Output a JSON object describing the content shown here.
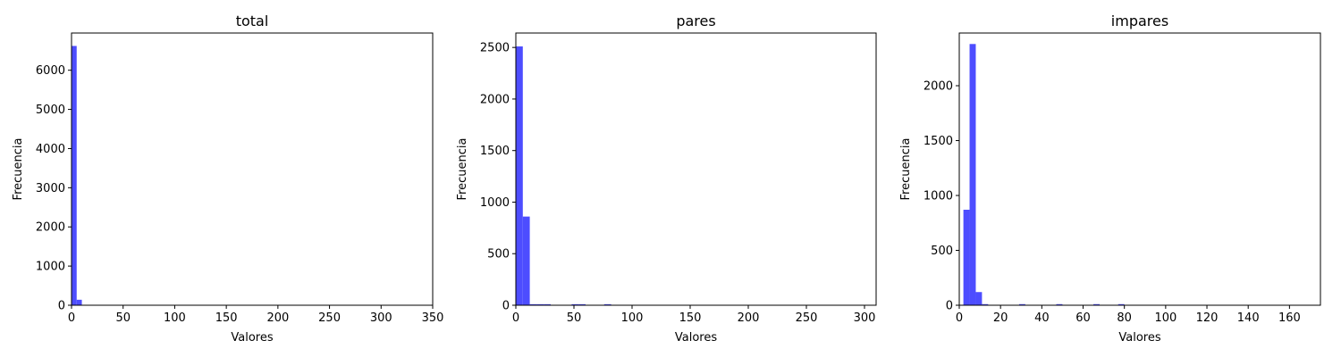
{
  "colors": {
    "bar": "#4d4dff",
    "axis": "#000000"
  },
  "chart_data": [
    {
      "type": "bar",
      "title": "total",
      "xlabel": "Valores",
      "ylabel": "Frecuencia",
      "xlim": [
        0,
        350
      ],
      "ylim": [
        0,
        6950
      ],
      "xticks": [
        "0",
        "50",
        "100",
        "150",
        "200",
        "250",
        "300",
        "350"
      ],
      "xtick_values": [
        0,
        50,
        100,
        150,
        200,
        250,
        300,
        350
      ],
      "yticks": [
        "0",
        "1000",
        "2000",
        "3000",
        "4000",
        "5000",
        "6000"
      ],
      "ytick_values": [
        0,
        1000,
        2000,
        3000,
        4000,
        5000,
        6000
      ],
      "bins": [
        {
          "x0": 0,
          "x1": 5,
          "value": 6620
        },
        {
          "x0": 5,
          "x1": 10,
          "value": 140
        },
        {
          "x0": 10,
          "x1": 15,
          "value": 10
        },
        {
          "x0": 20,
          "x1": 25,
          "value": 10
        },
        {
          "x0": 25,
          "x1": 30,
          "value": 5
        }
      ]
    },
    {
      "type": "bar",
      "title": "pares",
      "xlabel": "Valores",
      "ylabel": "Frecuencia",
      "xlim": [
        0,
        310
      ],
      "ylim": [
        0,
        2640
      ],
      "xticks": [
        "0",
        "50",
        "100",
        "150",
        "200",
        "250",
        "300"
      ],
      "xtick_values": [
        0,
        50,
        100,
        150,
        200,
        250,
        300
      ],
      "yticks": [
        "0",
        "500",
        "1000",
        "1500",
        "2000",
        "2500"
      ],
      "ytick_values": [
        0,
        500,
        1000,
        1500,
        2000,
        2500
      ],
      "bins": [
        {
          "x0": 0,
          "x1": 6,
          "value": 2510
        },
        {
          "x0": 6,
          "x1": 12,
          "value": 860
        },
        {
          "x0": 12,
          "x1": 18,
          "value": 10
        },
        {
          "x0": 18,
          "x1": 24,
          "value": 10
        },
        {
          "x0": 24,
          "x1": 30,
          "value": 10
        },
        {
          "x0": 48,
          "x1": 54,
          "value": 10
        },
        {
          "x0": 54,
          "x1": 60,
          "value": 10
        },
        {
          "x0": 76,
          "x1": 82,
          "value": 10
        }
      ]
    },
    {
      "type": "bar",
      "title": "impares",
      "xlabel": "Valores",
      "ylabel": "Frecuencia",
      "xlim": [
        0,
        175
      ],
      "ylim": [
        0,
        2480
      ],
      "xticks": [
        "0",
        "20",
        "40",
        "60",
        "80",
        "100",
        "120",
        "140",
        "160"
      ],
      "xtick_values": [
        0,
        20,
        40,
        60,
        80,
        100,
        120,
        140,
        160
      ],
      "yticks": [
        "0",
        "500",
        "1000",
        "1500",
        "2000"
      ],
      "ytick_values": [
        0,
        500,
        1000,
        1500,
        2000
      ],
      "bins": [
        {
          "x0": 2,
          "x1": 5,
          "value": 870
        },
        {
          "x0": 5,
          "x1": 8,
          "value": 2380
        },
        {
          "x0": 8,
          "x1": 11,
          "value": 120
        },
        {
          "x0": 11,
          "x1": 14,
          "value": 10
        },
        {
          "x0": 29,
          "x1": 32,
          "value": 10
        },
        {
          "x0": 47,
          "x1": 50,
          "value": 10
        },
        {
          "x0": 65,
          "x1": 68,
          "value": 10
        },
        {
          "x0": 77,
          "x1": 80,
          "value": 10
        }
      ]
    }
  ]
}
